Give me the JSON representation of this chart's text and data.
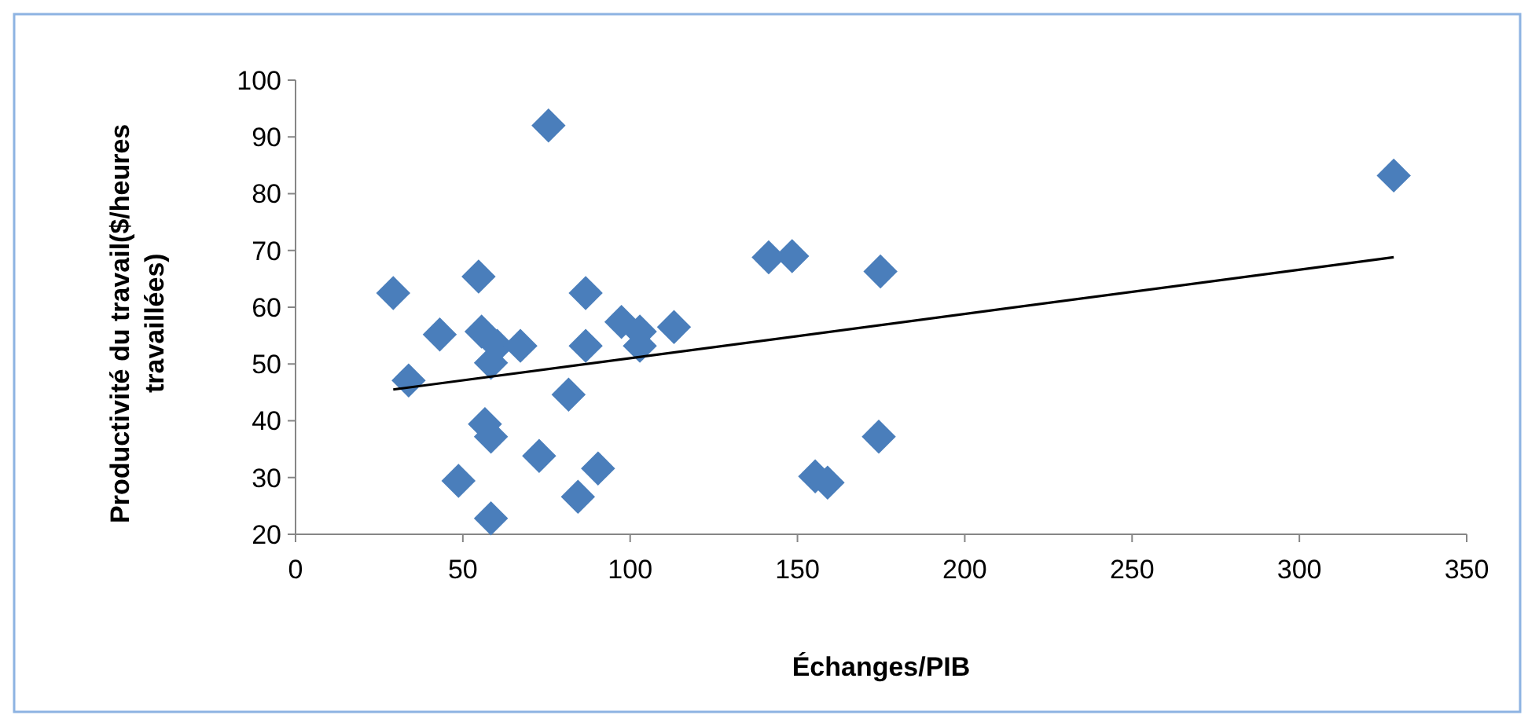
{
  "chart_data": {
    "type": "scatter",
    "xlabel": "Échanges/PIB",
    "ylabel": "Productivité du travail($/heures travaillées)",
    "xlim": [
      0,
      350
    ],
    "xticks": [
      0,
      50,
      100,
      150,
      200,
      250,
      300,
      350
    ],
    "ylim": [
      20,
      100
    ],
    "yticks": [
      20,
      30,
      40,
      50,
      60,
      70,
      80,
      90,
      100
    ],
    "grid": false,
    "series": [
      {
        "marker": "diamond",
        "color": "#4a7ebb",
        "x": [
          29.2,
          33.8,
          43.1,
          48.7,
          54.7,
          55.6,
          56.6,
          58.4,
          60.3,
          58.4,
          58.4,
          67.2,
          72.8,
          75.6,
          81.6,
          84.4,
          86.7,
          86.7,
          90.4,
          97.4,
          102.9,
          102.9,
          113.1,
          141.4,
          148.4,
          174.8,
          174.3,
          155.3,
          159,
          328.2
        ],
        "values": [
          62.5,
          47.1,
          55.2,
          29.4,
          65.4,
          55.7,
          39.4,
          50.2,
          53.2,
          37.2,
          22.8,
          53.2,
          33.8,
          92,
          44.6,
          26.6,
          62.5,
          53.2,
          31.6,
          57.4,
          55.7,
          53.2,
          56.5,
          68.8,
          69,
          66.3,
          37.2,
          30.2,
          29.1,
          83.2
        ]
      },
      {
        "type": "line",
        "color": "#000000",
        "x": [
          29.2,
          328.2
        ],
        "values": [
          45.5,
          68.8
        ]
      }
    ]
  }
}
